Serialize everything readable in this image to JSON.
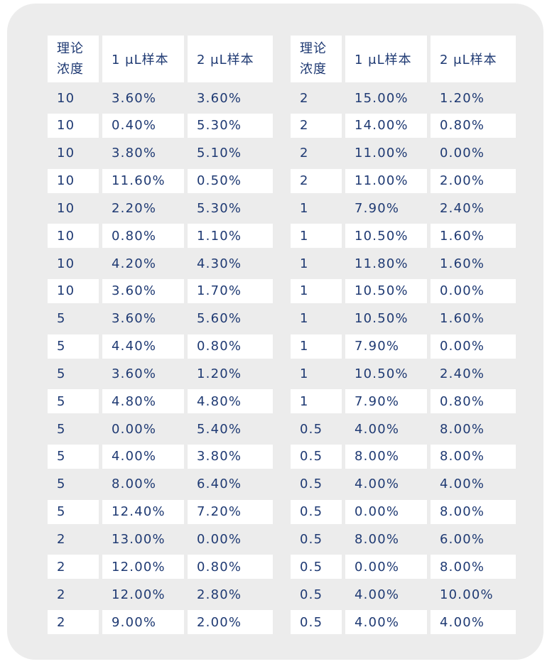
{
  "headers": [
    "理论\n浓度",
    "1 μL样本",
    "2 μL样本"
  ],
  "left_rows": [
    [
      "10",
      "3.60%",
      "3.60%"
    ],
    [
      "10",
      "0.40%",
      "5.30%"
    ],
    [
      "10",
      "3.80%",
      "5.10%"
    ],
    [
      "10",
      "11.60%",
      "0.50%"
    ],
    [
      "10",
      "2.20%",
      "5.30%"
    ],
    [
      "10",
      "0.80%",
      "1.10%"
    ],
    [
      "10",
      "4.20%",
      "4.30%"
    ],
    [
      "10",
      "3.60%",
      "1.70%"
    ],
    [
      "5",
      "3.60%",
      "5.60%"
    ],
    [
      "5",
      "4.40%",
      "0.80%"
    ],
    [
      "5",
      "3.60%",
      "1.20%"
    ],
    [
      "5",
      "4.80%",
      "4.80%"
    ],
    [
      "5",
      "0.00%",
      "5.40%"
    ],
    [
      "5",
      "4.00%",
      "3.80%"
    ],
    [
      "5",
      "8.00%",
      "6.40%"
    ],
    [
      "5",
      "12.40%",
      "7.20%"
    ],
    [
      "2",
      "13.00%",
      "0.00%"
    ],
    [
      "2",
      "12.00%",
      "0.80%"
    ],
    [
      "2",
      "12.00%",
      "2.80%"
    ],
    [
      "2",
      "9.00%",
      "2.00%"
    ]
  ],
  "right_rows": [
    [
      "2",
      "15.00%",
      "1.20%"
    ],
    [
      "2",
      "14.00%",
      "0.80%"
    ],
    [
      "2",
      "11.00%",
      "0.00%"
    ],
    [
      "2",
      "11.00%",
      "2.00%"
    ],
    [
      "1",
      "7.90%",
      "2.40%"
    ],
    [
      "1",
      "10.50%",
      "1.60%"
    ],
    [
      "1",
      "11.80%",
      "1.60%"
    ],
    [
      "1",
      "10.50%",
      "0.00%"
    ],
    [
      "1",
      "10.50%",
      "1.60%"
    ],
    [
      "1",
      "7.90%",
      "0.00%"
    ],
    [
      "1",
      "10.50%",
      "2.40%"
    ],
    [
      "1",
      "7.90%",
      "0.80%"
    ],
    [
      "0.5",
      "4.00%",
      "8.00%"
    ],
    [
      "0.5",
      "8.00%",
      "8.00%"
    ],
    [
      "0.5",
      "4.00%",
      "4.00%"
    ],
    [
      "0.5",
      "0.00%",
      "8.00%"
    ],
    [
      "0.5",
      "8.00%",
      "6.00%"
    ],
    [
      "0.5",
      "0.00%",
      "8.00%"
    ],
    [
      "0.5",
      "4.00%",
      "10.00%"
    ],
    [
      "0.5",
      "4.00%",
      "4.00%"
    ]
  ],
  "colors": {
    "text": "#1f3a73",
    "card_bg": "#ececec",
    "cell_bg": "#ffffff"
  }
}
